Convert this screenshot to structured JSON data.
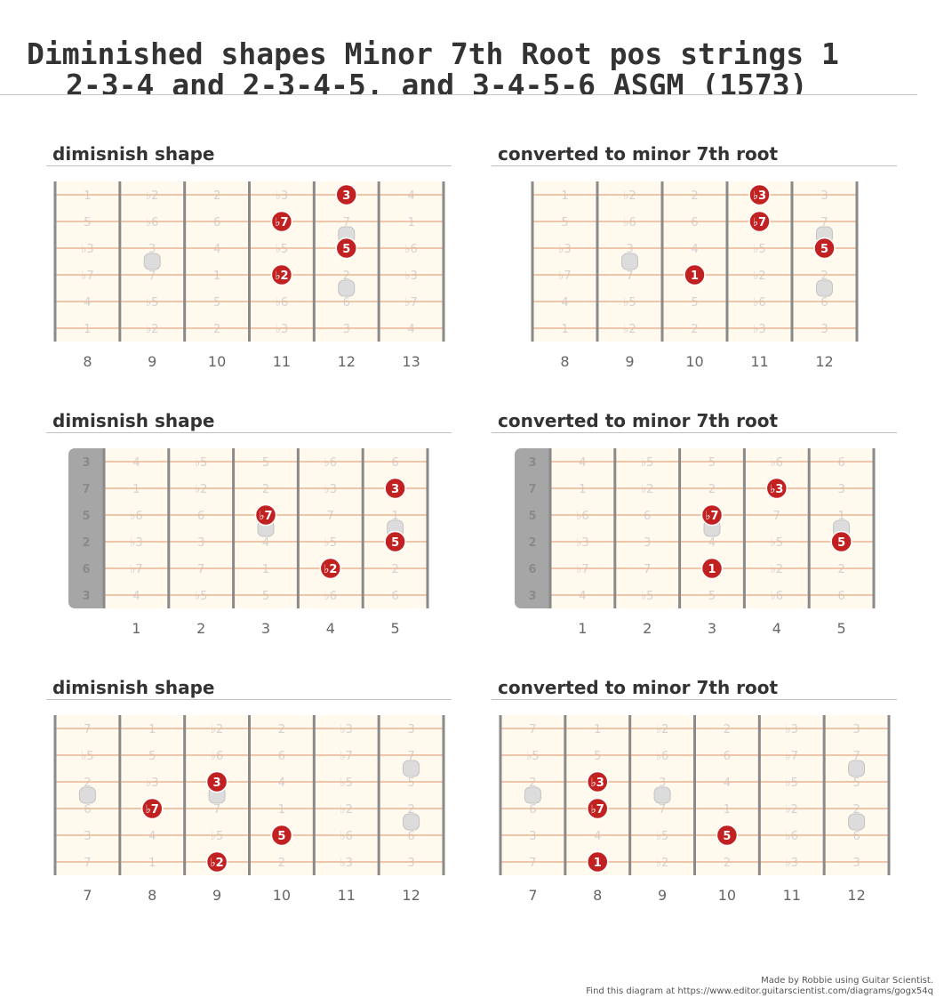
{
  "title": {
    "line1": "Diminished shapes Minor 7th Root pos  strings 1",
    "line2": "2-3-4 and 2-3-4-5, and 3-4-5-6 ASGM (1573)"
  },
  "colors": {
    "board": "#fff9ee",
    "string": "#e8b595",
    "fret": "#8a8a8a",
    "note": "#c22121",
    "nut": "#a6a6a6",
    "ghost_interval": "#d2d2d2",
    "fret_number": "#666666",
    "inlay": "#dcdcdc"
  },
  "diagrams": [
    {
      "title": "dimisnish shape",
      "nut": false,
      "fret_numbers": [
        "8",
        "9",
        "10",
        "11",
        "12",
        "13"
      ],
      "open_labels": [],
      "grid": [
        [
          "1",
          "♭2",
          "2",
          "♭3",
          "3",
          "4"
        ],
        [
          "5",
          "♭6",
          "6",
          "♭7",
          "7",
          "1"
        ],
        [
          "♭3",
          "3",
          "4",
          "♭5",
          "5",
          "♭6"
        ],
        [
          "♭7",
          "7",
          "1",
          "♭2",
          "2",
          "♭3"
        ],
        [
          "4",
          "♭5",
          "5",
          "♭6",
          "6",
          "♭7"
        ],
        [
          "1",
          "♭2",
          "2",
          "♭3",
          "3",
          "4"
        ]
      ],
      "notes": [
        {
          "string": 1,
          "fret": 12,
          "label": "3"
        },
        {
          "string": 2,
          "fret": 11,
          "label": "♭7"
        },
        {
          "string": 3,
          "fret": 12,
          "label": "5"
        },
        {
          "string": 4,
          "fret": 11,
          "label": "♭2"
        }
      ]
    },
    {
      "title": "converted to minor 7th root",
      "nut": false,
      "fret_numbers": [
        "8",
        "9",
        "10",
        "11",
        "12"
      ],
      "open_labels": [],
      "grid": [
        [
          "1",
          "♭2",
          "2",
          "♭3",
          "3"
        ],
        [
          "5",
          "♭6",
          "6",
          "♭7",
          "7"
        ],
        [
          "♭3",
          "3",
          "4",
          "♭5",
          "5"
        ],
        [
          "♭7",
          "7",
          "1",
          "♭2",
          "2"
        ],
        [
          "4",
          "♭5",
          "5",
          "♭6",
          "6"
        ],
        [
          "1",
          "♭2",
          "2",
          "♭3",
          "3"
        ]
      ],
      "notes": [
        {
          "string": 1,
          "fret": 11,
          "label": "♭3"
        },
        {
          "string": 2,
          "fret": 11,
          "label": "♭7"
        },
        {
          "string": 3,
          "fret": 12,
          "label": "5"
        },
        {
          "string": 4,
          "fret": 10,
          "label": "1"
        }
      ]
    },
    {
      "title": "dimisnish shape",
      "nut": true,
      "fret_numbers": [
        "1",
        "2",
        "3",
        "4",
        "5"
      ],
      "open_labels": [
        "3",
        "7",
        "5",
        "2",
        "6",
        "3"
      ],
      "grid": [
        [
          "4",
          "♭5",
          "5",
          "♭6",
          "6"
        ],
        [
          "1",
          "♭2",
          "2",
          "♭3",
          "3"
        ],
        [
          "♭6",
          "6",
          "♭7",
          "7",
          "1"
        ],
        [
          "♭3",
          "3",
          "4",
          "♭5",
          "5"
        ],
        [
          "♭7",
          "7",
          "1",
          "♭2",
          "2"
        ],
        [
          "4",
          "♭5",
          "5",
          "♭6",
          "6"
        ]
      ],
      "notes": [
        {
          "string": 2,
          "fret": 5,
          "label": "3"
        },
        {
          "string": 3,
          "fret": 3,
          "label": "♭7"
        },
        {
          "string": 4,
          "fret": 5,
          "label": "5"
        },
        {
          "string": 5,
          "fret": 4,
          "label": "♭2"
        }
      ]
    },
    {
      "title": "converted to minor 7th root",
      "nut": true,
      "fret_numbers": [
        "1",
        "2",
        "3",
        "4",
        "5"
      ],
      "open_labels": [
        "3",
        "7",
        "5",
        "2",
        "6",
        "3"
      ],
      "grid": [
        [
          "4",
          "♭5",
          "5",
          "♭6",
          "6"
        ],
        [
          "1",
          "♭2",
          "2",
          "♭3",
          "3"
        ],
        [
          "♭6",
          "6",
          "♭7",
          "7",
          "1"
        ],
        [
          "♭3",
          "3",
          "4",
          "♭5",
          "5"
        ],
        [
          "♭7",
          "7",
          "1",
          "♭2",
          "2"
        ],
        [
          "4",
          "♭5",
          "5",
          "♭6",
          "6"
        ]
      ],
      "notes": [
        {
          "string": 2,
          "fret": 4,
          "label": "♭3"
        },
        {
          "string": 3,
          "fret": 3,
          "label": "♭7"
        },
        {
          "string": 4,
          "fret": 5,
          "label": "5"
        },
        {
          "string": 5,
          "fret": 3,
          "label": "1"
        }
      ]
    },
    {
      "title": "dimisnish shape",
      "nut": false,
      "fret_numbers": [
        "7",
        "8",
        "9",
        "10",
        "11",
        "12"
      ],
      "open_labels": [],
      "grid": [
        [
          "7",
          "1",
          "♭2",
          "2",
          "♭3",
          "3"
        ],
        [
          "♭5",
          "5",
          "♭6",
          "6",
          "♭7",
          "7"
        ],
        [
          "2",
          "♭3",
          "3",
          "4",
          "♭5",
          "5"
        ],
        [
          "6",
          "♭7",
          "7",
          "1",
          "♭2",
          "2"
        ],
        [
          "3",
          "4",
          "♭5",
          "5",
          "♭6",
          "6"
        ],
        [
          "7",
          "1",
          "♭2",
          "2",
          "♭3",
          "3"
        ]
      ],
      "notes": [
        {
          "string": 3,
          "fret": 9,
          "label": "3"
        },
        {
          "string": 4,
          "fret": 8,
          "label": "♭7"
        },
        {
          "string": 5,
          "fret": 10,
          "label": "5"
        },
        {
          "string": 6,
          "fret": 9,
          "label": "♭2"
        }
      ]
    },
    {
      "title": "converted to minor 7th root",
      "nut": false,
      "fret_numbers": [
        "7",
        "8",
        "9",
        "10",
        "11",
        "12"
      ],
      "open_labels": [],
      "grid": [
        [
          "7",
          "1",
          "♭2",
          "2",
          "♭3",
          "3"
        ],
        [
          "♭5",
          "5",
          "♭6",
          "6",
          "♭7",
          "7"
        ],
        [
          "2",
          "♭3",
          "3",
          "4",
          "♭5",
          "5"
        ],
        [
          "6",
          "♭7",
          "7",
          "1",
          "♭2",
          "2"
        ],
        [
          "3",
          "4",
          "♭5",
          "5",
          "♭6",
          "6"
        ],
        [
          "7",
          "1",
          "♭2",
          "2",
          "♭3",
          "3"
        ]
      ],
      "notes": [
        {
          "string": 3,
          "fret": 8,
          "label": "♭3"
        },
        {
          "string": 4,
          "fret": 8,
          "label": "♭7"
        },
        {
          "string": 5,
          "fret": 10,
          "label": "5"
        },
        {
          "string": 6,
          "fret": 8,
          "label": "1"
        }
      ]
    }
  ],
  "credits": {
    "line1": "Made by Robbie using Guitar Scientist.",
    "line2": "Find this diagram at https://www.editor.guitarscientist.com/diagrams/gogx54q"
  }
}
